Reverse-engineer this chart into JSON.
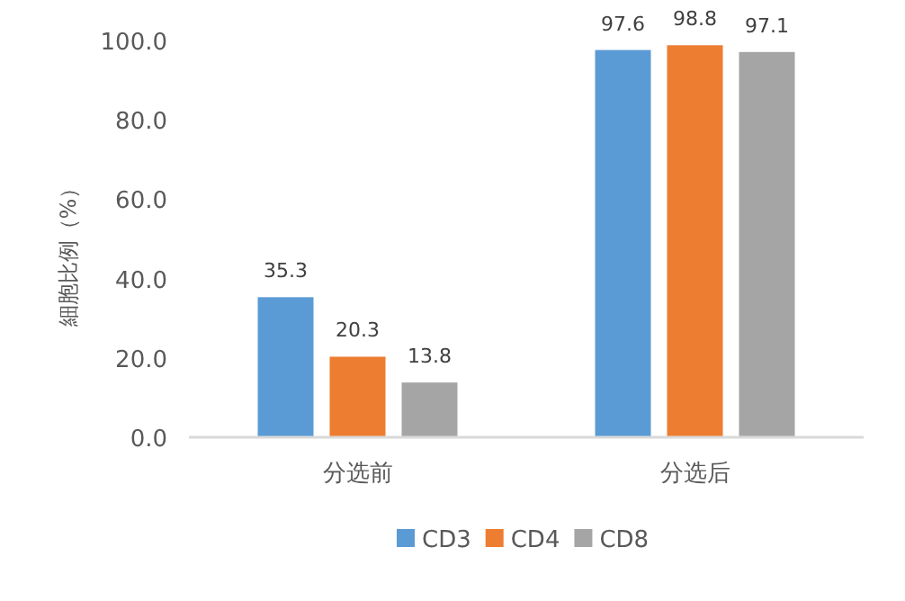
{
  "chart_data": {
    "type": "bar",
    "ylabel": "細胞比例（%）",
    "categories": [
      "分选前",
      "分选后"
    ],
    "series": [
      {
        "name": "CD3",
        "color": "#5b9bd5",
        "values": [
          35.3,
          97.6
        ]
      },
      {
        "name": "CD4",
        "color": "#ed7d31",
        "values": [
          20.3,
          98.8
        ]
      },
      {
        "name": "CD8",
        "color": "#a5a5a5",
        "values": [
          13.8,
          97.1
        ]
      }
    ],
    "ylim": [
      0,
      100
    ],
    "yticks": [
      {
        "value": 0,
        "label": "0.0"
      },
      {
        "value": 20,
        "label": "20.0"
      },
      {
        "value": 40,
        "label": "40.0"
      },
      {
        "value": 60,
        "label": "60.0"
      },
      {
        "value": 80,
        "label": "80.0"
      },
      {
        "value": 100,
        "label": "100.0"
      }
    ],
    "data_labels": true,
    "legend": "bottom",
    "grid": false
  }
}
